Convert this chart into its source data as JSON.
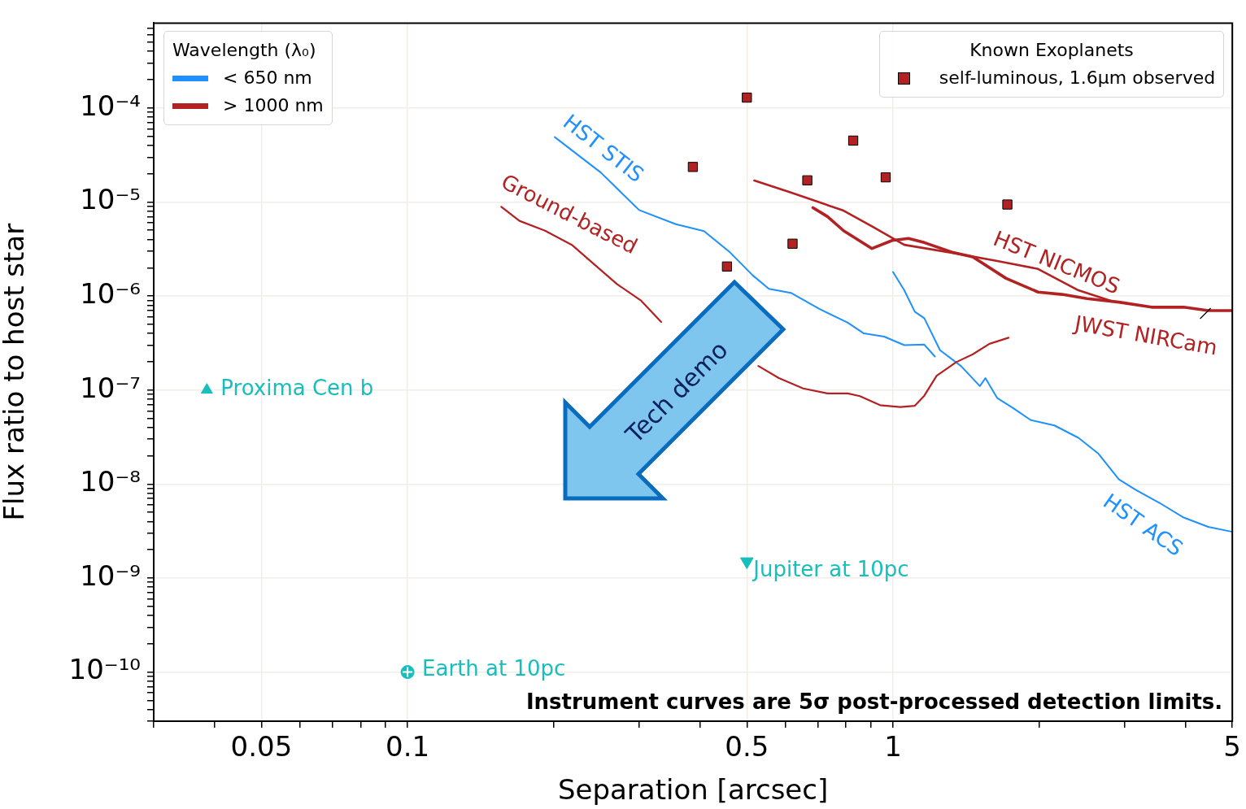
{
  "chart_data": {
    "type": "line",
    "xlabel": "Separation [arcsec]",
    "ylabel": "Flux ratio to host star",
    "legend_title": "Wavelength (λ₀)",
    "log": "xy",
    "grid": true,
    "legend": "top left",
    "xlim": [
      0.03,
      5
    ],
    "ylim": [
      3e-11,
      0.0008
    ],
    "xticks": [
      {
        "value": 0.03,
        "label": null
      },
      {
        "value": 0.04,
        "label": null
      },
      {
        "value": 0.05,
        "label": "0.05"
      },
      {
        "value": 0.06,
        "label": null
      },
      {
        "value": 0.07,
        "label": null
      },
      {
        "value": 0.08,
        "label": null
      },
      {
        "value": 0.09,
        "label": null
      },
      {
        "value": 0.1,
        "label": "0.1"
      },
      {
        "value": 0.2,
        "label": null
      },
      {
        "value": 0.3,
        "label": null
      },
      {
        "value": 0.4,
        "label": null
      },
      {
        "value": 0.5,
        "label": "0.5"
      },
      {
        "value": 0.6,
        "label": null
      },
      {
        "value": 0.7,
        "label": null
      },
      {
        "value": 0.8,
        "label": null
      },
      {
        "value": 0.9,
        "label": null
      },
      {
        "value": 1,
        "label": "1"
      },
      {
        "value": 2,
        "label": null
      },
      {
        "value": 3,
        "label": null
      },
      {
        "value": 4,
        "label": null
      },
      {
        "value": 5,
        "label": "5"
      }
    ],
    "yticks": [
      {
        "value": 3e-11,
        "label": null
      },
      {
        "value": 4e-11,
        "label": null
      },
      {
        "value": 5e-11,
        "label": null
      },
      {
        "value": 6e-11,
        "label": null
      },
      {
        "value": 7e-11,
        "label": null
      },
      {
        "value": 8e-11,
        "label": null
      },
      {
        "value": 9e-11,
        "label": null
      },
      {
        "value": 1e-10,
        "label": "10⁻¹⁰"
      },
      {
        "value": 2e-10,
        "label": null
      },
      {
        "value": 3e-10,
        "label": null
      },
      {
        "value": 4e-10,
        "label": null
      },
      {
        "value": 5e-10,
        "label": null
      },
      {
        "value": 6e-10,
        "label": null
      },
      {
        "value": 7e-10,
        "label": null
      },
      {
        "value": 8e-10,
        "label": null
      },
      {
        "value": 9e-10,
        "label": null
      },
      {
        "value": 1e-09,
        "label": "10⁻⁹"
      },
      {
        "value": 2e-09,
        "label": null
      },
      {
        "value": 3e-09,
        "label": null
      },
      {
        "value": 4e-09,
        "label": null
      },
      {
        "value": 5e-09,
        "label": null
      },
      {
        "value": 6e-09,
        "label": null
      },
      {
        "value": 7e-09,
        "label": null
      },
      {
        "value": 8e-09,
        "label": null
      },
      {
        "value": 9e-09,
        "label": null
      },
      {
        "value": 1e-08,
        "label": "10⁻⁸"
      },
      {
        "value": 2e-08,
        "label": null
      },
      {
        "value": 3e-08,
        "label": null
      },
      {
        "value": 4e-08,
        "label": null
      },
      {
        "value": 5e-08,
        "label": null
      },
      {
        "value": 6e-08,
        "label": null
      },
      {
        "value": 7e-08,
        "label": null
      },
      {
        "value": 8e-08,
        "label": null
      },
      {
        "value": 9e-08,
        "label": null
      },
      {
        "value": 1e-07,
        "label": "10⁻⁷"
      },
      {
        "value": 2e-07,
        "label": null
      },
      {
        "value": 3e-07,
        "label": null
      },
      {
        "value": 4e-07,
        "label": null
      },
      {
        "value": 5e-07,
        "label": null
      },
      {
        "value": 6e-07,
        "label": null
      },
      {
        "value": 7e-07,
        "label": null
      },
      {
        "value": 8e-07,
        "label": null
      },
      {
        "value": 9e-07,
        "label": null
      },
      {
        "value": 1e-06,
        "label": "10⁻⁶"
      },
      {
        "value": 2e-06,
        "label": null
      },
      {
        "value": 3e-06,
        "label": null
      },
      {
        "value": 4e-06,
        "label": null
      },
      {
        "value": 5e-06,
        "label": null
      },
      {
        "value": 6e-06,
        "label": null
      },
      {
        "value": 7e-06,
        "label": null
      },
      {
        "value": 8e-06,
        "label": null
      },
      {
        "value": 9e-06,
        "label": null
      },
      {
        "value": 1e-05,
        "label": "10⁻⁵"
      },
      {
        "value": 2e-05,
        "label": null
      },
      {
        "value": 3e-05,
        "label": null
      },
      {
        "value": 4e-05,
        "label": null
      },
      {
        "value": 5e-05,
        "label": null
      },
      {
        "value": 6e-05,
        "label": null
      },
      {
        "value": 7e-05,
        "label": null
      },
      {
        "value": 8e-05,
        "label": null
      },
      {
        "value": 9e-05,
        "label": null
      },
      {
        "value": 0.0001,
        "label": "10⁻⁴"
      },
      {
        "value": 0.0002,
        "label": null
      },
      {
        "value": 0.0003,
        "label": null
      },
      {
        "value": 0.0004,
        "label": null
      },
      {
        "value": 0.0005,
        "label": null
      },
      {
        "value": 0.0006,
        "label": null
      },
      {
        "value": 0.0007,
        "label": null
      }
    ],
    "series": [
      {
        "name": "HST STIS",
        "type": "line",
        "color": "#1e90ff",
        "x": [
          0.201,
          0.25,
          0.3,
          0.357,
          0.408,
          0.462,
          0.514,
          0.555,
          0.616,
          0.705,
          0.807,
          0.871,
          0.959,
          1.055,
          1.16,
          1.22
        ],
        "values": [
          4.9e-05,
          2.06e-05,
          8.2e-06,
          5.8e-06,
          4.9e-06,
          2.9e-06,
          1.66e-06,
          1.19e-06,
          1.08e-06,
          7.3e-07,
          5.2e-07,
          4e-07,
          3.7e-07,
          3e-07,
          3.04e-07,
          2.27e-07
        ]
      },
      {
        "name": "Ground-based",
        "type": "line",
        "color": "#b22222",
        "x": [
          0.156,
          0.17,
          0.192,
          0.218,
          0.24,
          0.27,
          0.303,
          0.333,
          0.364,
          0.411,
          0.471,
          0.528,
          0.582,
          0.653,
          0.733,
          0.807,
          0.855,
          0.94,
          1.035,
          1.109,
          1.16,
          1.23,
          1.35,
          1.46,
          1.58,
          1.73
        ],
        "values": [
          8.9e-06,
          6.3e-06,
          4.95e-06,
          3.5e-06,
          2.27e-06,
          1.34e-06,
          8.9e-07,
          5.3e-07,
          null,
          null,
          null,
          1.8e-07,
          1.34e-07,
          1.04e-07,
          9.2e-08,
          9.2e-08,
          8.6e-08,
          6.9e-08,
          6.6e-08,
          6.8e-08,
          8.7e-08,
          1.42e-07,
          1.98e-07,
          2.4e-07,
          3.1e-07,
          3.6e-07
        ]
      },
      {
        "name": "HST NICMOS",
        "type": "line",
        "color": "#b22222",
        "x": [
          0.518,
          0.616,
          0.791,
          0.905,
          1.055,
          1.33,
          1.64,
          1.99,
          2.41,
          2.81
        ],
        "values": [
          1.69e-05,
          1.26e-05,
          8.1e-06,
          5.5e-06,
          3.5e-06,
          2.87e-06,
          2.36e-06,
          1.94e-06,
          1.15e-06,
          8.9e-07
        ]
      },
      {
        "name": "JWST NIRCam",
        "type": "line",
        "color": "#b22222",
        "x": [
          0.684,
          0.733,
          0.791,
          0.905,
          0.996,
          1.076,
          1.16,
          1.33,
          1.46,
          1.71,
          1.99,
          2.23,
          2.51,
          2.92,
          3.41,
          3.97,
          4.46,
          5
        ],
        "values": [
          8.7e-06,
          7e-06,
          4.95e-06,
          3.2e-06,
          3.9e-06,
          4.1e-06,
          3.7e-06,
          2.9e-06,
          2.6e-06,
          1.54e-06,
          1.1e-06,
          1.04e-06,
          9.4e-07,
          8.6e-07,
          7.6e-07,
          7.6e-07,
          7e-07,
          7e-07
        ]
      },
      {
        "name": "HST ACS",
        "type": "line",
        "color": "#1e90ff",
        "x": [
          1.0,
          1.055,
          1.109,
          1.16,
          1.25,
          1.38,
          1.51,
          1.55,
          1.64,
          1.77,
          1.92,
          2.15,
          2.41,
          2.65,
          2.92,
          3.16,
          3.54,
          3.97,
          4.46,
          5
        ],
        "values": [
          1.8e-06,
          1.15e-06,
          6.8e-07,
          5.8e-07,
          2.65e-07,
          1.8e-07,
          1.1e-07,
          1.34e-07,
          8.2e-08,
          6.4e-08,
          4.8e-08,
          4.2e-08,
          3.1e-08,
          2.1e-08,
          1.12e-08,
          8.7e-09,
          6.3e-09,
          4.4e-09,
          3.5e-09,
          3.1e-09
        ]
      },
      {
        "name": "self-luminous, 1.6µm observed",
        "type": "scatter",
        "marker": "square",
        "color": "#b22222",
        "x": [
          0.5,
          0.387,
          0.828,
          0.666,
          0.966,
          1.72,
          0.621,
          0.455
        ],
        "values": [
          0.000129,
          2.36e-05,
          4.5e-05,
          1.7e-05,
          1.83e-05,
          9.4e-06,
          3.6e-06,
          2.06e-06
        ]
      },
      {
        "name": "Proxima Cen b",
        "type": "scatter",
        "marker": "triangle",
        "color": "#17bebb",
        "x": [
          0.0386
        ],
        "values": [
          1e-07
        ]
      },
      {
        "name": "Jupiter at 10pc",
        "type": "scatter",
        "marker": "triangle",
        "color": "#17bebb",
        "x": [
          0.5
        ],
        "values": [
          1.5e-09
        ]
      },
      {
        "name": "Earth at 10pc",
        "type": "scatter",
        "marker": "circle",
        "color": "#17bebb",
        "x": [
          0.1
        ],
        "values": [
          1e-10
        ]
      },
      {
        "name": "< 650 nm",
        "type": "line",
        "color": "#1e90ff"
      },
      {
        "name": "> 1000 nm",
        "type": "line",
        "color": "#b22222"
      }
    ],
    "annotations": [
      "Tech demo",
      "Instrument curves are 5σ post-processed detection limits.",
      "Known Exoplanets"
    ]
  }
}
